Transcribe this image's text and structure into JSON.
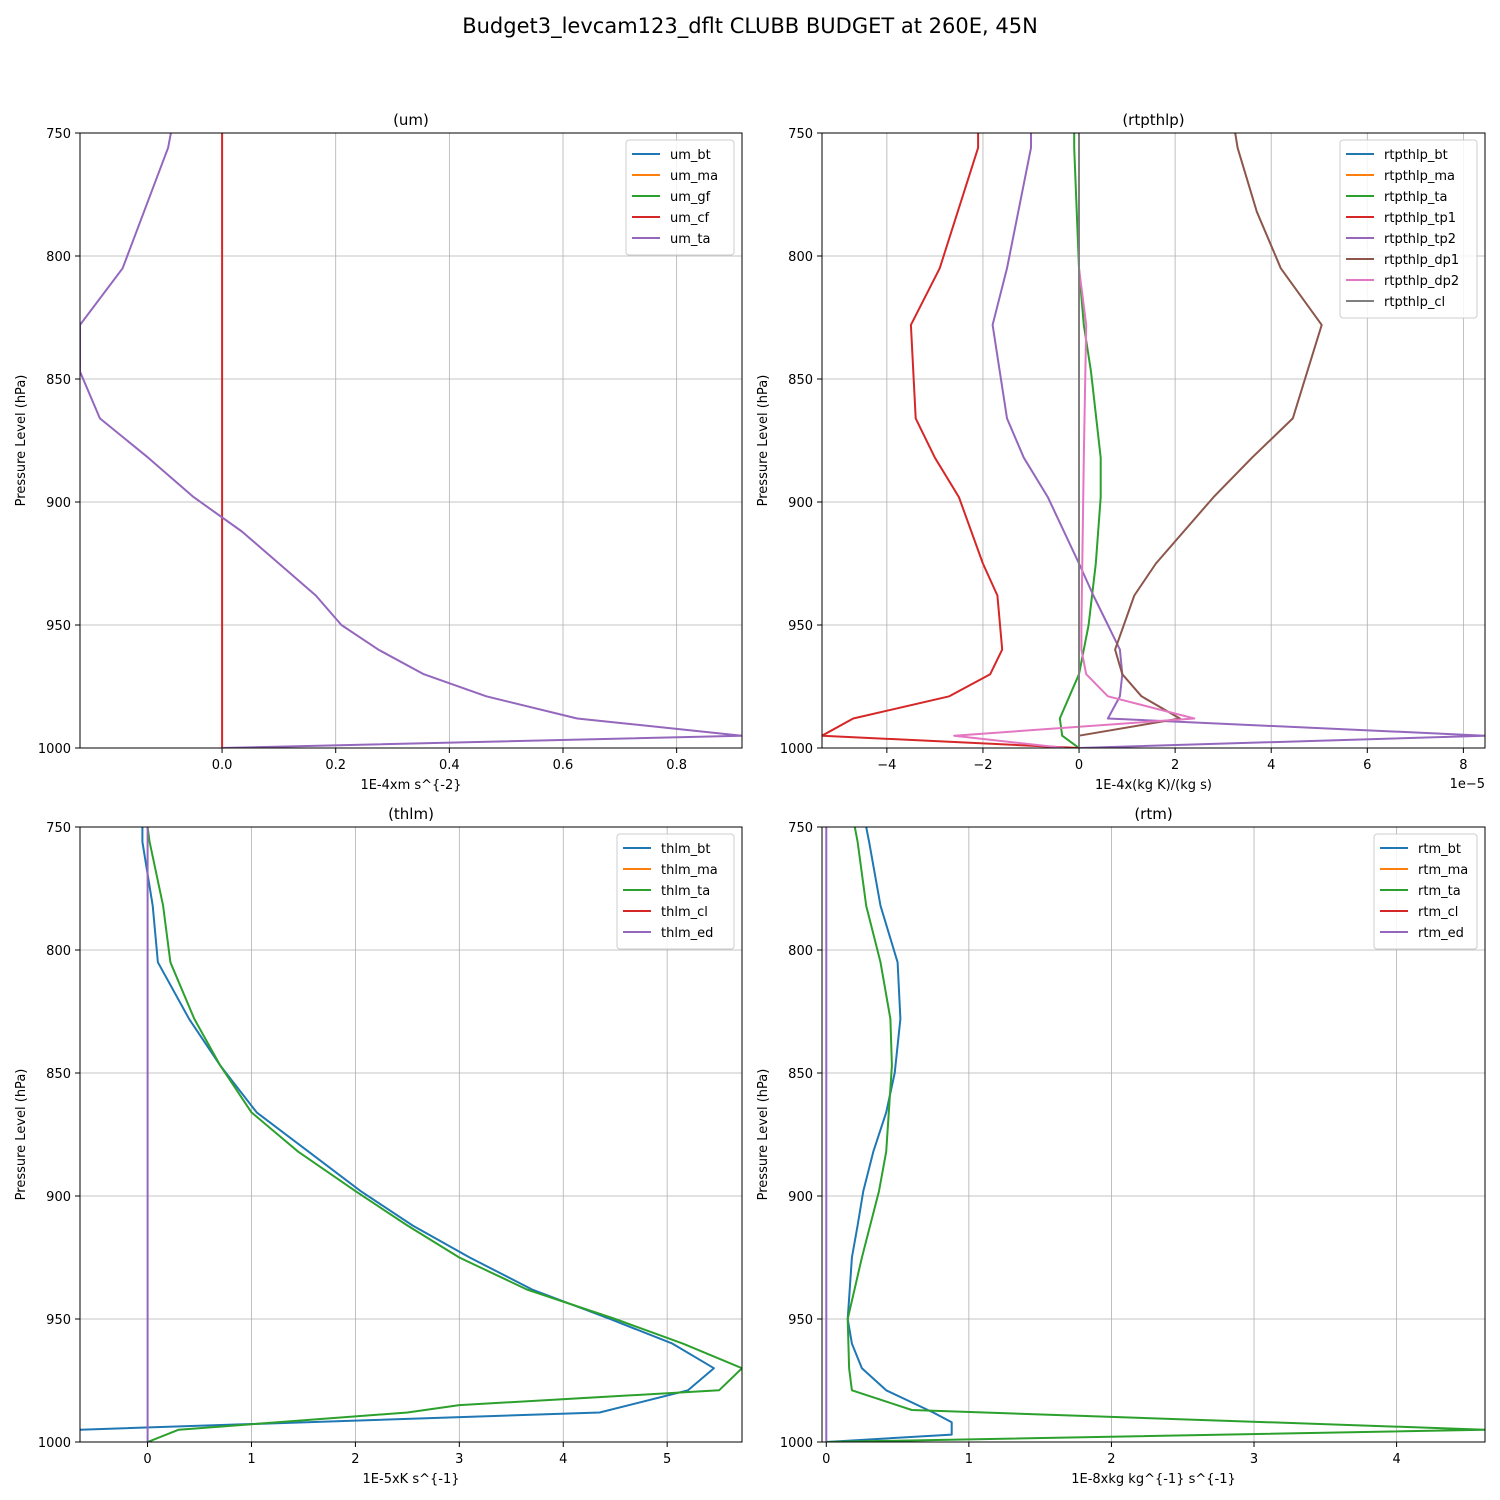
{
  "figure": {
    "title": "Budget3_levcam123_dflt CLUBB BUDGET at 260E, 45N"
  },
  "colors": {
    "C0": "#1f77b4",
    "C1": "#ff7f0e",
    "C2": "#2ca02c",
    "C3": "#d62728",
    "C4": "#9467bd",
    "C5": "#8c564b",
    "C6": "#e377c2",
    "C7": "#7f7f7f",
    "grid": "#b0b0b0"
  },
  "chart_data": [
    {
      "type": "line",
      "title": "(um)",
      "xlabel": "1E-4xm s^{-2}",
      "ylabel": "Pressure Level (hPa)",
      "xlim": [
        -0.25,
        0.915
      ],
      "ylim": [
        1000,
        750
      ],
      "xticks": [
        {
          "v": 0.0,
          "label": "0.0"
        },
        {
          "v": 0.2,
          "label": "0.2"
        },
        {
          "v": 0.4,
          "label": "0.4"
        },
        {
          "v": 0.6,
          "label": "0.6"
        },
        {
          "v": 0.8,
          "label": "0.8"
        }
      ],
      "yticks": [
        750,
        800,
        850,
        900,
        950,
        1000
      ],
      "offset_text": "",
      "grid": true,
      "legend": "upper right",
      "series": [
        {
          "name": "um_bt",
          "color": "C0",
          "points": []
        },
        {
          "name": "um_ma",
          "color": "C1",
          "points": []
        },
        {
          "name": "um_gf",
          "color": "C2",
          "points": []
        },
        {
          "name": "um_cf",
          "color": "C3",
          "points": [
            [
              0,
              750
            ],
            [
              0,
              1000
            ]
          ]
        },
        {
          "name": "um_ta",
          "color": "C4",
          "points": [
            [
              -0.09,
              750
            ],
            [
              -0.095,
              756
            ],
            [
              -0.175,
              805
            ],
            [
              -0.25,
              828
            ],
            [
              -0.25,
              847
            ],
            [
              -0.215,
              866
            ],
            [
              -0.13,
              882
            ],
            [
              -0.05,
              898
            ],
            [
              0.035,
              912
            ],
            [
              0.1,
              925
            ],
            [
              0.165,
              938
            ],
            [
              0.21,
              950
            ],
            [
              0.275,
              960
            ],
            [
              0.355,
              970
            ],
            [
              0.465,
              979
            ],
            [
              0.625,
              988
            ],
            [
              0.915,
              995
            ],
            [
              0.0,
              1000
            ]
          ]
        }
      ]
    },
    {
      "type": "line",
      "title": "(rtpthlp)",
      "xlabel": "1E-4x(kg K)/(kg s)",
      "ylabel": "Pressure Level (hPa)",
      "xlim": [
        -5.35,
        8.45
      ],
      "ylim": [
        1000,
        750
      ],
      "xticks": [
        {
          "v": -4,
          "label": "−4"
        },
        {
          "v": -2,
          "label": "−2"
        },
        {
          "v": 0,
          "label": "0"
        },
        {
          "v": 2,
          "label": "2"
        },
        {
          "v": 4,
          "label": "4"
        },
        {
          "v": 6,
          "label": "6"
        },
        {
          "v": 8,
          "label": "8"
        }
      ],
      "yticks": [
        750,
        800,
        850,
        900,
        950,
        1000
      ],
      "offset_text": "1e−5",
      "grid": true,
      "legend": "upper right",
      "series": [
        {
          "name": "rtpthlp_bt",
          "color": "C0",
          "points": []
        },
        {
          "name": "rtpthlp_ma",
          "color": "C1",
          "points": []
        },
        {
          "name": "rtpthlp_ta",
          "color": "C2",
          "points": [
            [
              -0.1,
              750
            ],
            [
              -0.1,
              756
            ],
            [
              0.0,
              805
            ],
            [
              0.1,
              828
            ],
            [
              0.25,
              847
            ],
            [
              0.45,
              882
            ],
            [
              0.45,
              898
            ],
            [
              0.35,
              925
            ],
            [
              0.2,
              950
            ],
            [
              0.0,
              970
            ],
            [
              -0.2,
              979
            ],
            [
              -0.4,
              988
            ],
            [
              -0.35,
              995
            ],
            [
              0.0,
              1000
            ]
          ]
        },
        {
          "name": "rtpthlp_tp1",
          "color": "C3",
          "points": [
            [
              -2.1,
              750
            ],
            [
              -2.1,
              756
            ],
            [
              -2.9,
              805
            ],
            [
              -3.5,
              828
            ],
            [
              -3.4,
              866
            ],
            [
              -3.0,
              882
            ],
            [
              -2.5,
              898
            ],
            [
              -2.0,
              925
            ],
            [
              -1.7,
              938
            ],
            [
              -1.6,
              960
            ],
            [
              -1.85,
              970
            ],
            [
              -2.7,
              979
            ],
            [
              -4.7,
              988
            ],
            [
              -5.35,
              995
            ],
            [
              0.0,
              1000
            ]
          ]
        },
        {
          "name": "rtpthlp_tp2",
          "color": "C4",
          "points": [
            [
              -1.0,
              750
            ],
            [
              -1.0,
              756
            ],
            [
              -1.5,
              805
            ],
            [
              -1.8,
              828
            ],
            [
              -1.5,
              866
            ],
            [
              -1.15,
              882
            ],
            [
              -0.65,
              898
            ],
            [
              0.0,
              925
            ],
            [
              0.3,
              938
            ],
            [
              0.6,
              950
            ],
            [
              0.85,
              960
            ],
            [
              0.9,
              970
            ],
            [
              0.85,
              979
            ],
            [
              0.6,
              988
            ],
            [
              8.45,
              995
            ],
            [
              0.0,
              1000
            ]
          ]
        },
        {
          "name": "rtpthlp_dp1",
          "color": "C5",
          "points": [
            [
              3.25,
              750
            ],
            [
              3.3,
              756
            ],
            [
              3.7,
              782
            ],
            [
              4.2,
              805
            ],
            [
              5.05,
              828
            ],
            [
              4.45,
              866
            ],
            [
              3.6,
              882
            ],
            [
              2.8,
              898
            ],
            [
              1.6,
              925
            ],
            [
              1.15,
              938
            ],
            [
              0.75,
              960
            ],
            [
              0.9,
              970
            ],
            [
              1.3,
              979
            ],
            [
              2.1,
              988
            ],
            [
              0.0,
              995
            ]
          ]
        },
        {
          "name": "rtpthlp_dp2",
          "color": "C6",
          "points": [
            [
              0.0,
              750
            ],
            [
              0.0,
              805
            ],
            [
              0.15,
              828
            ],
            [
              0.1,
              882
            ],
            [
              0.05,
              950
            ],
            [
              0.05,
              960
            ],
            [
              0.15,
              970
            ],
            [
              0.6,
              979
            ],
            [
              2.4,
              988
            ],
            [
              -2.6,
              995
            ],
            [
              -0.3,
              1000
            ]
          ]
        },
        {
          "name": "rtpthlp_cl",
          "color": "C7",
          "points": [
            [
              0,
              750
            ],
            [
              0,
              1000
            ]
          ]
        }
      ]
    },
    {
      "type": "line",
      "title": "(thlm)",
      "xlabel": "1E-5xK s^{-1}",
      "ylabel": "Pressure Level (hPa)",
      "xlim": [
        -0.65,
        5.72
      ],
      "ylim": [
        1000,
        750
      ],
      "xticks": [
        {
          "v": 0,
          "label": "0"
        },
        {
          "v": 1,
          "label": "1"
        },
        {
          "v": 2,
          "label": "2"
        },
        {
          "v": 3,
          "label": "3"
        },
        {
          "v": 4,
          "label": "4"
        },
        {
          "v": 5,
          "label": "5"
        }
      ],
      "yticks": [
        750,
        800,
        850,
        900,
        950,
        1000
      ],
      "offset_text": "",
      "grid": true,
      "legend": "upper right",
      "series": [
        {
          "name": "thlm_bt",
          "color": "C0",
          "points": [
            [
              -0.05,
              750
            ],
            [
              -0.05,
              756
            ],
            [
              0.05,
              782
            ],
            [
              0.1,
              805
            ],
            [
              0.4,
              828
            ],
            [
              0.7,
              847
            ],
            [
              1.05,
              866
            ],
            [
              1.55,
              882
            ],
            [
              2.05,
              898
            ],
            [
              2.55,
              912
            ],
            [
              3.1,
              925
            ],
            [
              3.7,
              938
            ],
            [
              4.45,
              950
            ],
            [
              5.05,
              960
            ],
            [
              5.45,
              970
            ],
            [
              5.2,
              979
            ],
            [
              4.35,
              988
            ],
            [
              -0.65,
              995
            ]
          ]
        },
        {
          "name": "thlm_ma",
          "color": "C1",
          "points": []
        },
        {
          "name": "thlm_ta",
          "color": "C2",
          "points": [
            [
              0.0,
              750
            ],
            [
              0.02,
              756
            ],
            [
              0.15,
              782
            ],
            [
              0.22,
              805
            ],
            [
              0.45,
              828
            ],
            [
              0.7,
              847
            ],
            [
              1.0,
              866
            ],
            [
              1.45,
              882
            ],
            [
              2.0,
              898
            ],
            [
              2.5,
              912
            ],
            [
              3.0,
              925
            ],
            [
              3.65,
              938
            ],
            [
              4.5,
              950
            ],
            [
              5.15,
              960
            ],
            [
              5.72,
              970
            ],
            [
              5.5,
              979
            ],
            [
              3.0,
              985
            ],
            [
              2.5,
              988
            ],
            [
              0.3,
              995
            ],
            [
              0.0,
              1000
            ]
          ]
        },
        {
          "name": "thlm_cl",
          "color": "C3",
          "points": []
        },
        {
          "name": "thlm_ed",
          "color": "C4",
          "points": [
            [
              0,
              750
            ],
            [
              0,
              1000
            ]
          ]
        }
      ]
    },
    {
      "type": "line",
      "title": "(rtm)",
      "xlabel": "1E-8xkg kg^{-1} s^{-1}",
      "ylabel": "Pressure Level (hPa)",
      "xlim": [
        -0.03,
        4.62
      ],
      "ylim": [
        1000,
        750
      ],
      "xticks": [
        {
          "v": 0,
          "label": "0"
        },
        {
          "v": 1,
          "label": "1"
        },
        {
          "v": 2,
          "label": "2"
        },
        {
          "v": 3,
          "label": "3"
        },
        {
          "v": 4,
          "label": "4"
        }
      ],
      "yticks": [
        750,
        800,
        850,
        900,
        950,
        1000
      ],
      "offset_text": "",
      "grid": true,
      "legend": "upper right",
      "series": [
        {
          "name": "rtm_bt",
          "color": "C0",
          "points": [
            [
              0.28,
              750
            ],
            [
              0.3,
              756
            ],
            [
              0.38,
              782
            ],
            [
              0.5,
              805
            ],
            [
              0.52,
              828
            ],
            [
              0.48,
              850
            ],
            [
              0.42,
              866
            ],
            [
              0.33,
              882
            ],
            [
              0.26,
              898
            ],
            [
              0.22,
              912
            ],
            [
              0.18,
              925
            ],
            [
              0.15,
              950
            ],
            [
              0.18,
              960
            ],
            [
              0.25,
              970
            ],
            [
              0.42,
              979
            ],
            [
              0.75,
              988
            ],
            [
              0.88,
              992
            ],
            [
              0.88,
              997
            ],
            [
              0.0,
              1000
            ]
          ]
        },
        {
          "name": "rtm_ma",
          "color": "C1",
          "points": []
        },
        {
          "name": "rtm_ta",
          "color": "C2",
          "points": [
            [
              0.2,
              750
            ],
            [
              0.22,
              756
            ],
            [
              0.28,
              782
            ],
            [
              0.38,
              805
            ],
            [
              0.45,
              828
            ],
            [
              0.46,
              847
            ],
            [
              0.42,
              882
            ],
            [
              0.37,
              898
            ],
            [
              0.25,
              925
            ],
            [
              0.15,
              950
            ],
            [
              0.16,
              970
            ],
            [
              0.18,
              979
            ],
            [
              0.6,
              987
            ],
            [
              4.62,
              995
            ],
            [
              0.0,
              1000
            ]
          ]
        },
        {
          "name": "rtm_cl",
          "color": "C3",
          "points": []
        },
        {
          "name": "rtm_ed",
          "color": "C4",
          "points": [
            [
              0.0,
              750
            ],
            [
              0.0,
              1000
            ]
          ]
        }
      ]
    }
  ]
}
